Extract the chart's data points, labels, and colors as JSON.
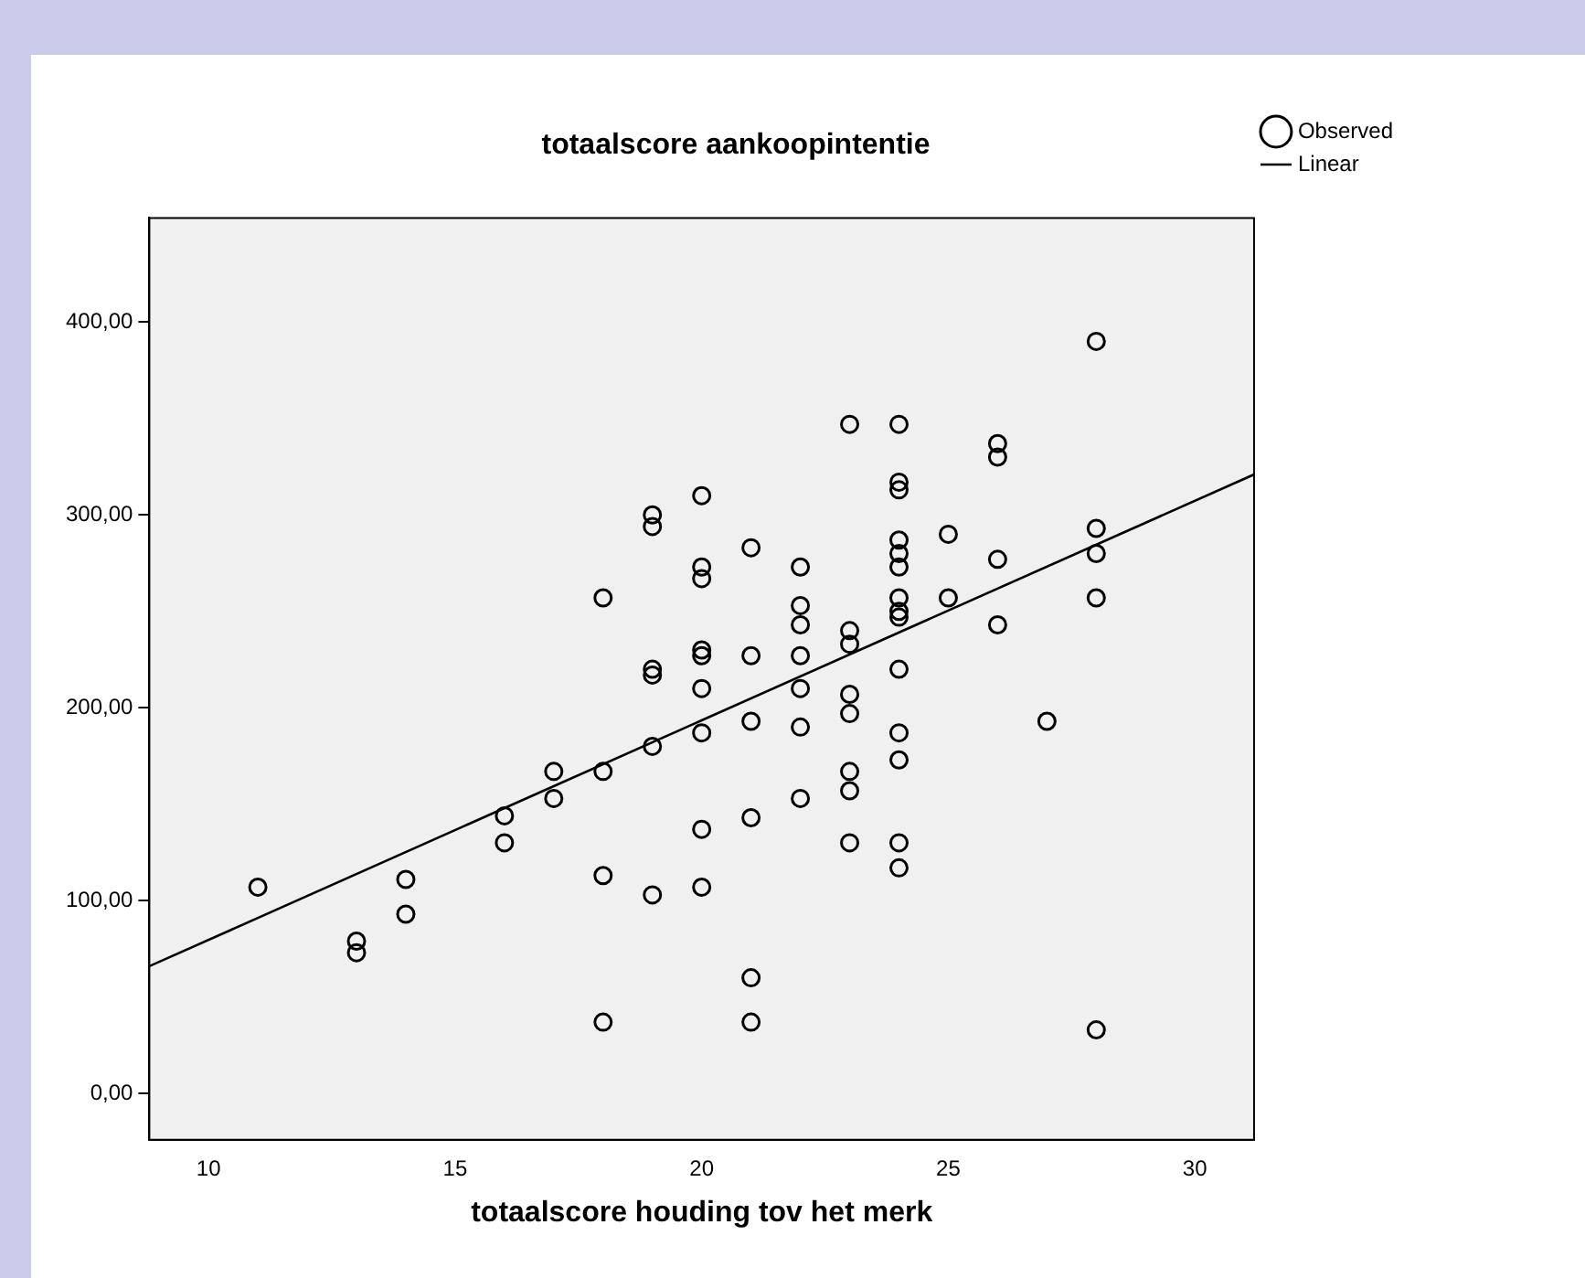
{
  "chart_data": {
    "type": "scatter",
    "title": "totaalscore aankoopintentie",
    "xlabel": "totaalscore houding tov het merk",
    "xlim": [
      8.8,
      31.2
    ],
    "ylim": [
      -24,
      454
    ],
    "xticks": [
      10,
      15,
      20,
      25,
      30
    ],
    "yticks": [
      {
        "value": 0,
        "label": "0,00"
      },
      {
        "value": 100,
        "label": "100,00"
      },
      {
        "value": 200,
        "label": "200,00"
      },
      {
        "value": 300,
        "label": "300,00"
      },
      {
        "value": 400,
        "label": "400,00"
      }
    ],
    "grid": false,
    "legend": "top right",
    "marker": "circle",
    "series": [
      {
        "name": "Observed",
        "type": "scatter",
        "color": "#000000",
        "x": [
          11,
          13,
          13,
          14,
          14,
          16,
          16,
          17,
          17,
          18,
          18,
          18,
          18,
          19,
          19,
          19,
          19,
          19,
          19,
          20,
          20,
          20,
          20,
          20,
          20,
          20,
          20,
          20,
          21,
          21,
          21,
          21,
          21,
          21,
          22,
          22,
          22,
          22,
          22,
          22,
          22,
          23,
          23,
          23,
          23,
          23,
          23,
          23,
          23,
          24,
          24,
          24,
          24,
          24,
          24,
          24,
          24,
          24,
          24,
          24,
          24,
          24,
          24,
          25,
          25,
          26,
          26,
          26,
          26,
          27,
          28,
          28,
          28,
          28,
          28
        ],
        "values": [
          107,
          79,
          73,
          111,
          93,
          144,
          130,
          167,
          153,
          257,
          167,
          113,
          37,
          300,
          294,
          220,
          217,
          180,
          103,
          310,
          273,
          267,
          230,
          227,
          210,
          187,
          137,
          107,
          283,
          227,
          193,
          143,
          60,
          37,
          273,
          253,
          243,
          227,
          210,
          190,
          153,
          347,
          240,
          233,
          207,
          197,
          167,
          157,
          130,
          347,
          317,
          313,
          287,
          280,
          273,
          257,
          250,
          247,
          220,
          187,
          173,
          130,
          117,
          290,
          257,
          337,
          330,
          277,
          243,
          193,
          390,
          293,
          280,
          257,
          33
        ]
      },
      {
        "name": "Linear",
        "type": "line",
        "color": "#000000",
        "marker": "none",
        "x": [
          8.8,
          31.2
        ],
        "values": [
          66,
          321
        ]
      }
    ]
  }
}
